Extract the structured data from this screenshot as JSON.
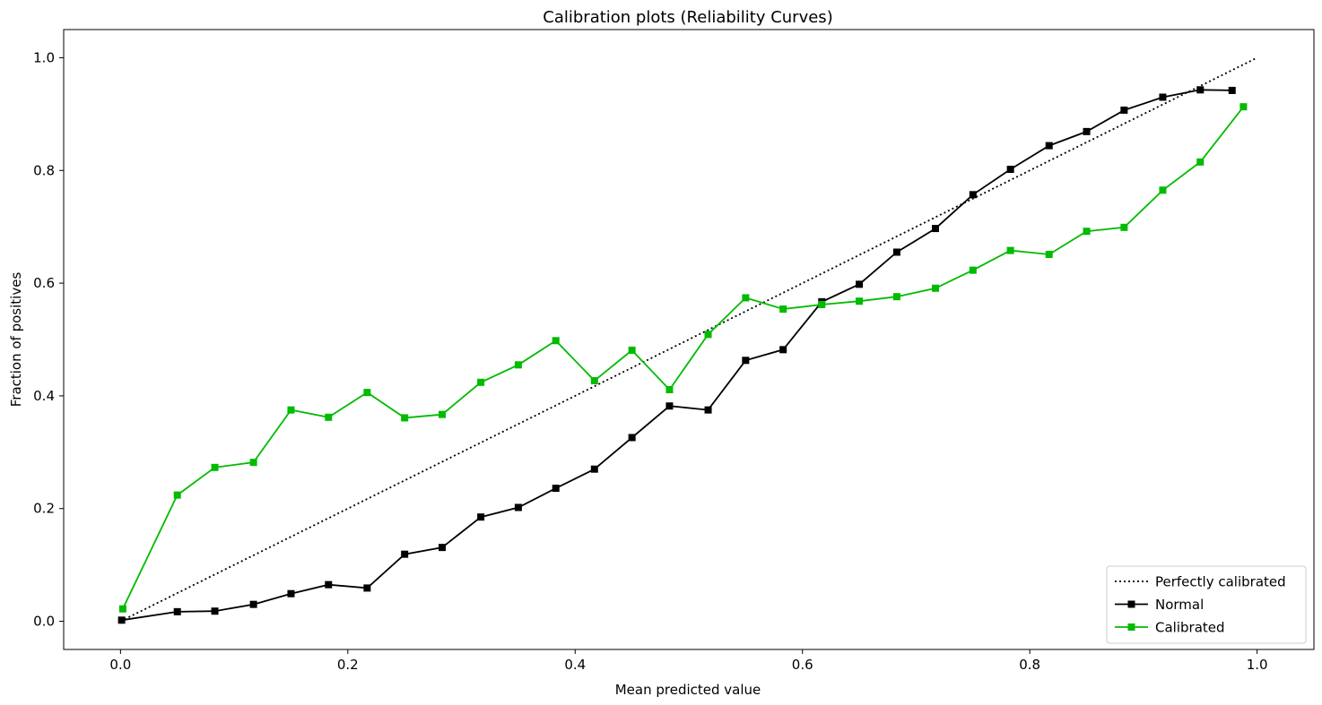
{
  "chart_data": {
    "type": "line",
    "title": "Calibration plots (Reliability Curves)",
    "xlabel": "Mean predicted value",
    "ylabel": "Fraction of positives",
    "xlim": [
      -0.05,
      1.05
    ],
    "ylim": [
      -0.05,
      1.05
    ],
    "xticks": [
      "0.0",
      "0.2",
      "0.4",
      "0.6",
      "0.8",
      "1.0"
    ],
    "yticks": [
      "0.0",
      "0.2",
      "0.4",
      "0.6",
      "0.8",
      "1.0"
    ],
    "grid": false,
    "legend_position": "bottom-right",
    "series": [
      {
        "name": "Perfectly calibrated",
        "style": "dotted",
        "color": "#000000",
        "marker": "none",
        "x": [
          0,
          1
        ],
        "y": [
          0,
          1
        ]
      },
      {
        "name": "Normal",
        "style": "solid",
        "color": "#000000",
        "marker": "square",
        "x": [
          0.001,
          0.05,
          0.083,
          0.117,
          0.15,
          0.183,
          0.217,
          0.25,
          0.283,
          0.317,
          0.35,
          0.383,
          0.417,
          0.45,
          0.483,
          0.517,
          0.55,
          0.583,
          0.617,
          0.65,
          0.683,
          0.717,
          0.75,
          0.783,
          0.817,
          0.85,
          0.883,
          0.917,
          0.95,
          0.978
        ],
        "y": [
          0.002,
          0.017,
          0.018,
          0.03,
          0.049,
          0.065,
          0.059,
          0.119,
          0.131,
          0.185,
          0.202,
          0.236,
          0.27,
          0.326,
          0.382,
          0.375,
          0.463,
          0.482,
          0.567,
          0.598,
          0.655,
          0.697,
          0.757,
          0.802,
          0.844,
          0.869,
          0.907,
          0.93,
          0.943,
          0.942
        ]
      },
      {
        "name": "Calibrated",
        "style": "solid",
        "color": "#00bb00",
        "marker": "square",
        "x": [
          0.002,
          0.05,
          0.083,
          0.117,
          0.15,
          0.183,
          0.217,
          0.25,
          0.283,
          0.317,
          0.35,
          0.383,
          0.417,
          0.45,
          0.483,
          0.517,
          0.55,
          0.583,
          0.617,
          0.65,
          0.683,
          0.717,
          0.75,
          0.783,
          0.817,
          0.85,
          0.883,
          0.917,
          0.95,
          0.988
        ],
        "y": [
          0.022,
          0.224,
          0.273,
          0.282,
          0.375,
          0.362,
          0.406,
          0.361,
          0.367,
          0.424,
          0.455,
          0.498,
          0.427,
          0.481,
          0.411,
          0.509,
          0.574,
          0.554,
          0.562,
          0.568,
          0.576,
          0.591,
          0.623,
          0.658,
          0.651,
          0.692,
          0.699,
          0.765,
          0.815,
          0.913
        ]
      }
    ]
  }
}
